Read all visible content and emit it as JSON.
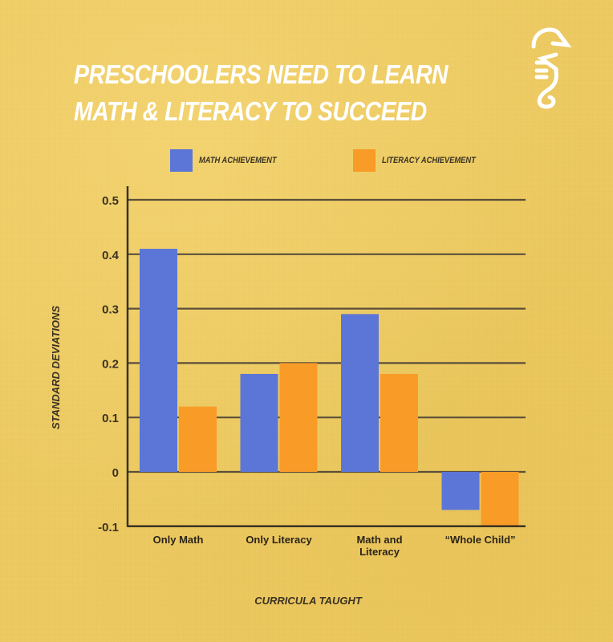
{
  "title_lines": [
    "PRESCHOOLERS NEED TO LEARN",
    "MATH & LITERACY TO SUCCEED"
  ],
  "logo": {
    "icon": "seahorse-logo-icon",
    "color": "#ffffff"
  },
  "chart_data": {
    "type": "bar",
    "title": "PRESCHOOLERS NEED TO LEARN MATH & LITERACY TO SUCCEED",
    "xlabel": "CURRICULA TAUGHT",
    "ylabel": "STANDARD DEVIATIONS",
    "categories": [
      [
        "Only Math"
      ],
      [
        "Only Literacy"
      ],
      [
        "Math and",
        "Literacy"
      ],
      [
        "“Whole Child”"
      ]
    ],
    "series": [
      {
        "name": "MATH ACHIEVEMENT",
        "color": "#5b76d6",
        "values": [
          0.41,
          0.18,
          0.29,
          -0.07
        ]
      },
      {
        "name": "LITERACY ACHIEVEMENT",
        "color": "#f99b27",
        "values": [
          0.12,
          0.2,
          0.18,
          -0.1
        ]
      }
    ],
    "ylim": [
      -0.1,
      0.5
    ],
    "yticks": [
      "0.5",
      "0.4",
      "0.3",
      "0.2",
      "0.1",
      "0",
      "-0.1"
    ],
    "ytick_values": [
      0.5,
      0.4,
      0.3,
      0.2,
      0.1,
      0,
      -0.1
    ],
    "grid": true,
    "legend_position": "top"
  }
}
